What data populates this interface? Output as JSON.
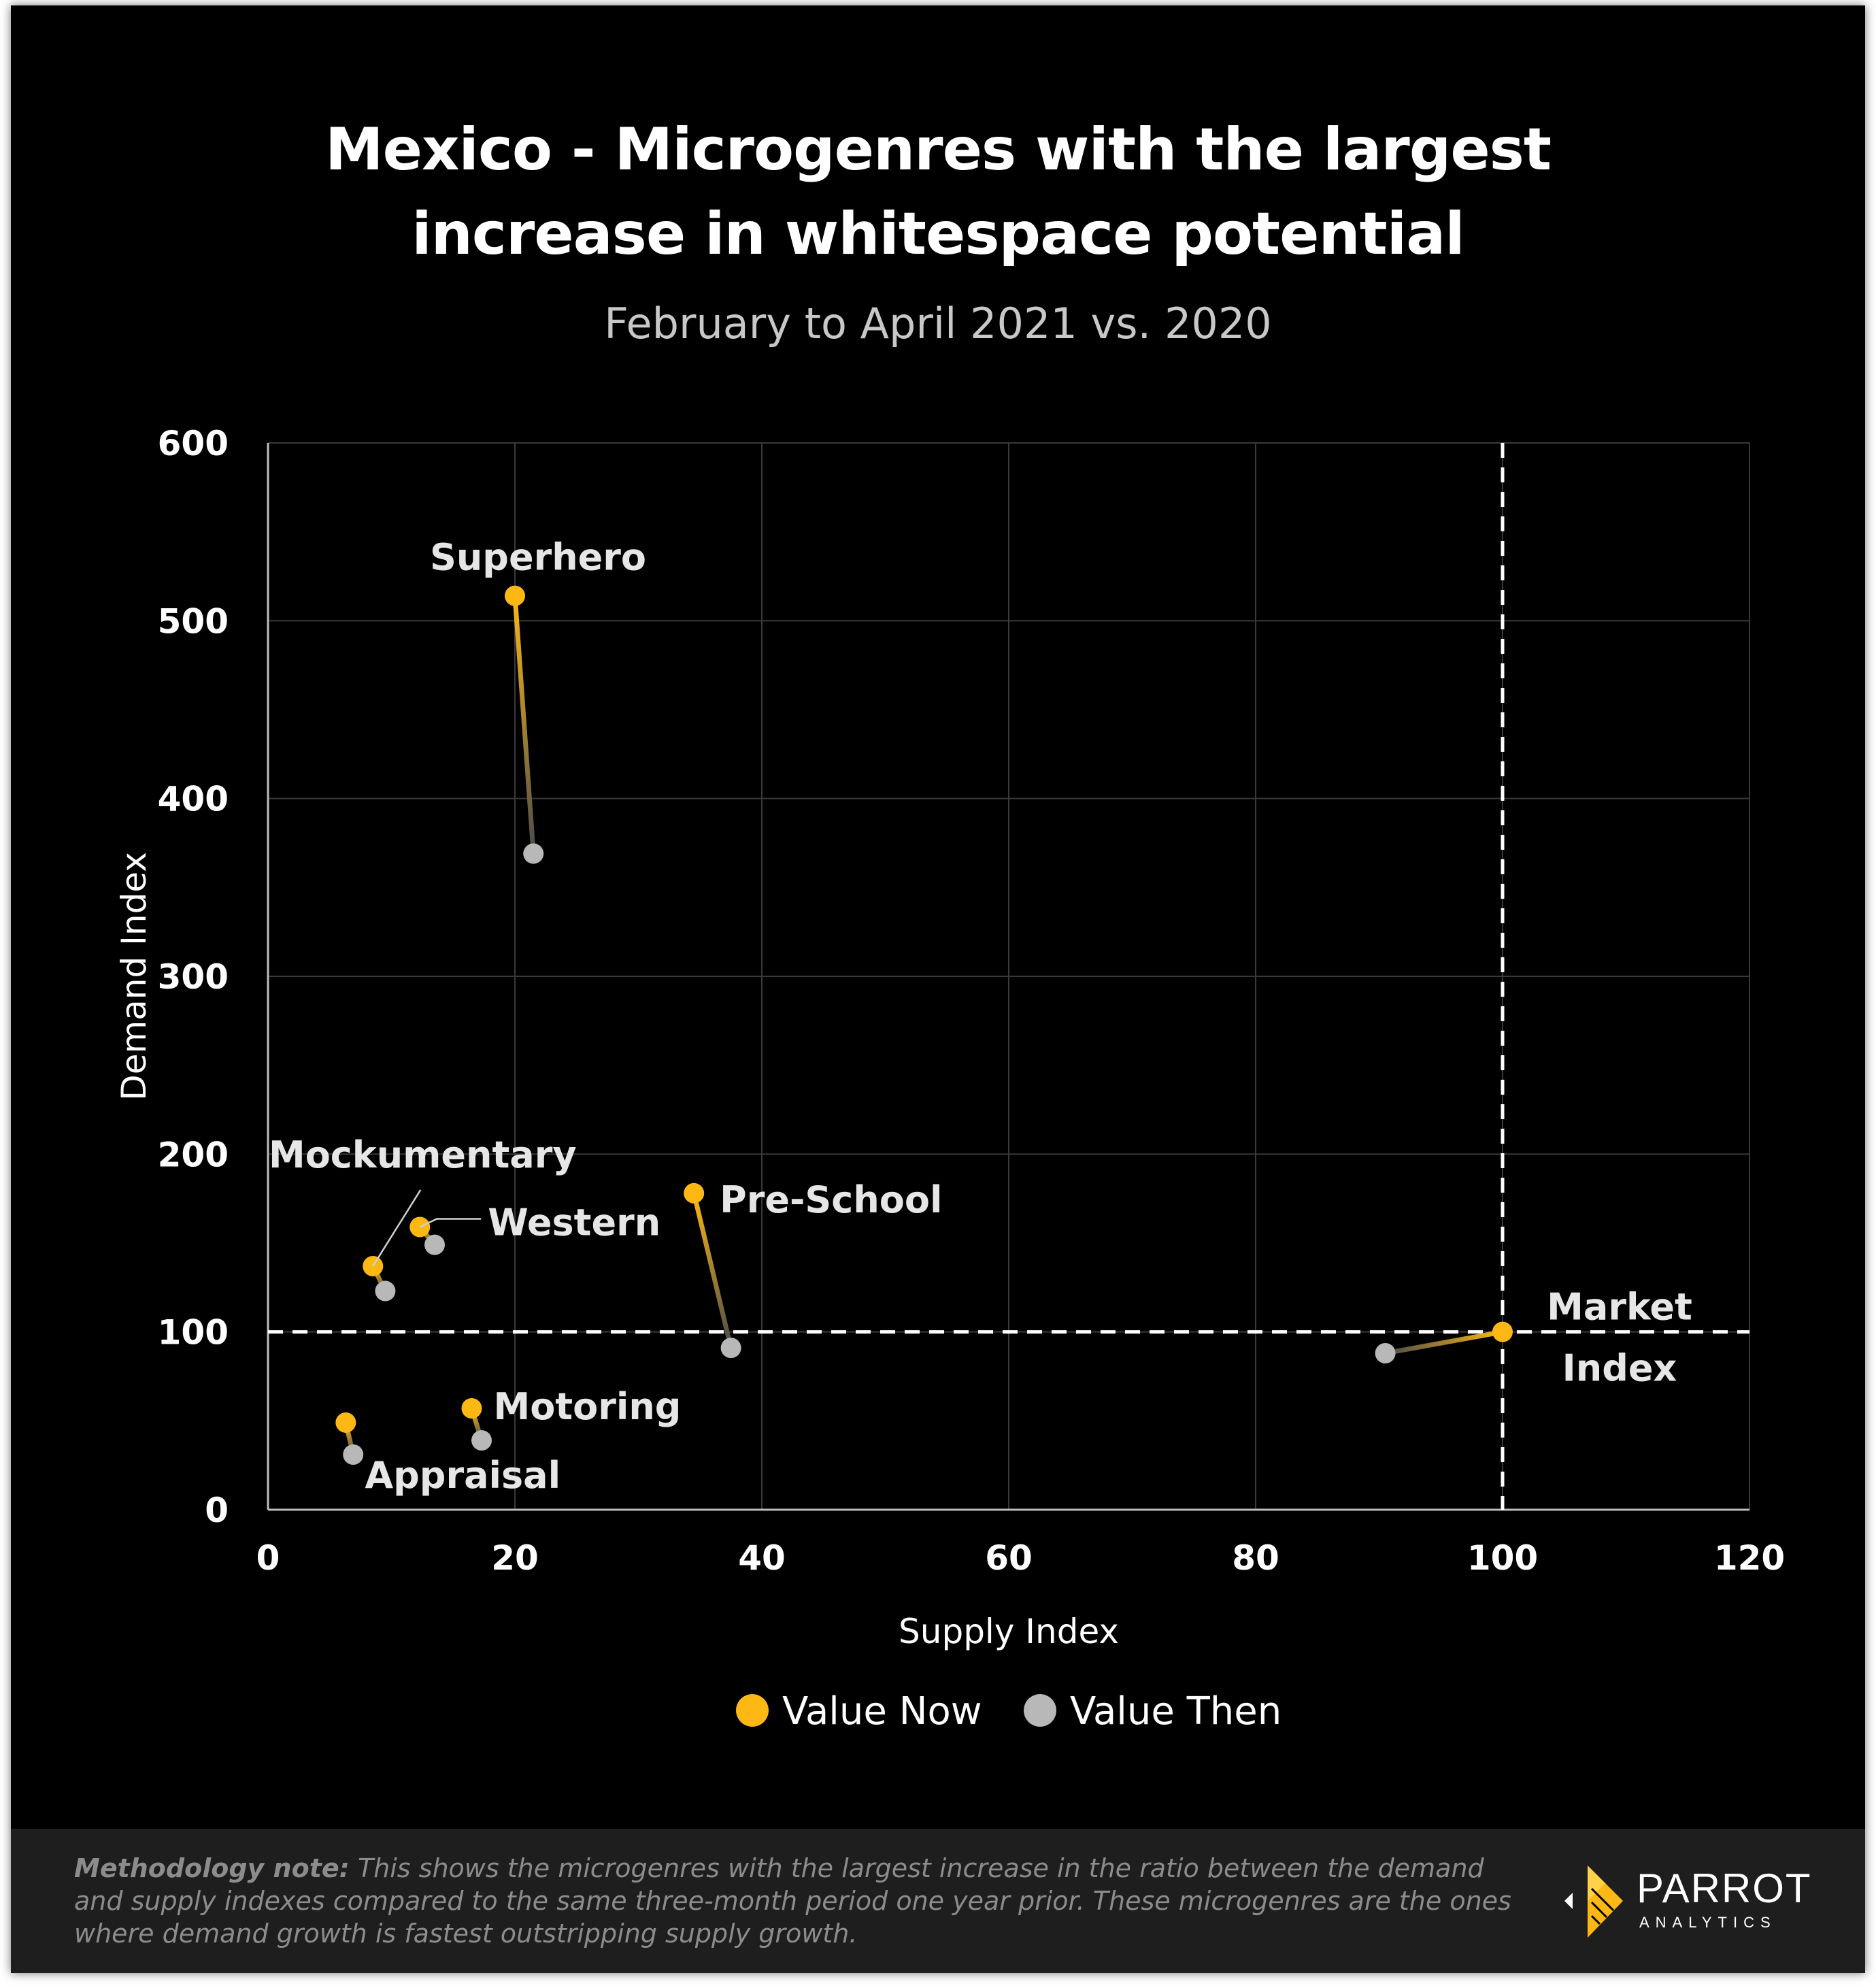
{
  "header": {
    "title_line1": "Mexico - Microgenres with the largest",
    "title_line2": "increase in whitespace potential",
    "subtitle": "February to April 2021 vs. 2020"
  },
  "colors": {
    "now": "#fdb813",
    "then": "#b8b8b8",
    "background": "#000000",
    "grid": "#3a3a3a"
  },
  "chart_data": {
    "type": "scatter",
    "title": "Mexico - Microgenres with the largest increase in whitespace potential",
    "subtitle": "February to April 2021 vs. 2020",
    "xlabel": "Supply Index",
    "ylabel": "Demand Index",
    "xlim": [
      0,
      120
    ],
    "ylim": [
      0,
      600
    ],
    "xticks": [
      0,
      20,
      40,
      60,
      80,
      100,
      120
    ],
    "yticks": [
      0,
      100,
      200,
      300,
      400,
      500,
      600
    ],
    "reference_lines": {
      "x": 100,
      "y": 100,
      "style": "dashed"
    },
    "legend": [
      "Value Now",
      "Value Then"
    ],
    "series": [
      {
        "name": "Superhero",
        "label": "Superhero",
        "now": [
          20,
          514
        ],
        "then": [
          21.5,
          369
        ]
      },
      {
        "name": "Mockumentary",
        "label": "Mockumentary",
        "now": [
          8.5,
          137
        ],
        "then": [
          9.5,
          123
        ]
      },
      {
        "name": "Western",
        "label": "Western",
        "now": [
          12.3,
          159
        ],
        "then": [
          13.5,
          149
        ]
      },
      {
        "name": "Pre-School",
        "label": "Pre-School",
        "now": [
          34.5,
          178
        ],
        "then": [
          37.5,
          91
        ]
      },
      {
        "name": "Market Index",
        "label_line1": "Market",
        "label_line2": "Index",
        "now": [
          100,
          100
        ],
        "then": [
          90.5,
          88
        ]
      },
      {
        "name": "Motoring",
        "label": "Motoring",
        "now": [
          16.5,
          57
        ],
        "then": [
          17.3,
          39
        ]
      },
      {
        "name": "Appraisal",
        "label": "Appraisal",
        "now": [
          6.3,
          49
        ],
        "then": [
          6.9,
          31
        ]
      }
    ]
  },
  "footer": {
    "note_label": "Methodology note:",
    "note_text": " This shows the microgenres with the largest increase in the ratio between the demand and supply indexes compared to the same three-month period one year prior. These microgenres are the ones where demand growth is fastest outstripping supply growth.",
    "logo_name": "PARROT",
    "logo_sub": "ANALYTICS"
  }
}
